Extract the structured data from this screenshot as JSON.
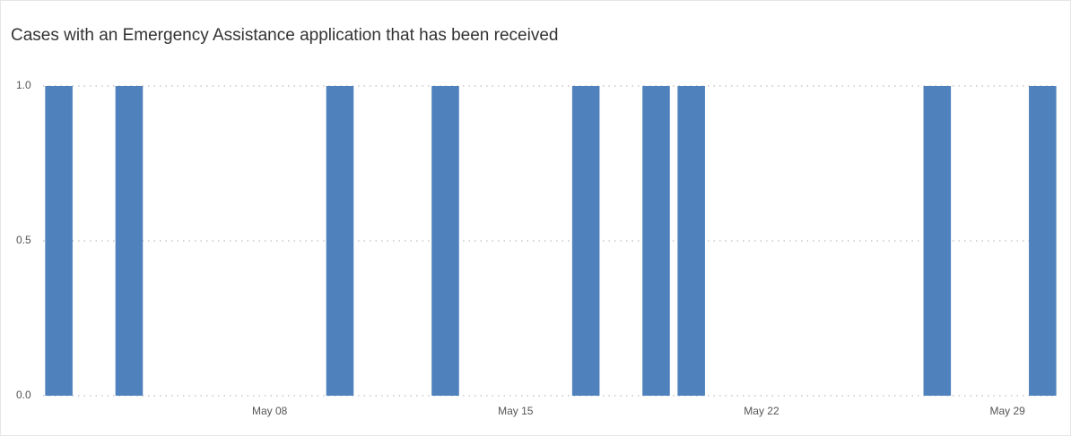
{
  "chart_data": {
    "type": "bar",
    "title": "Cases with an Emergency Assistance application that has been received",
    "x": [
      2,
      4,
      10,
      13,
      17,
      19,
      20,
      27,
      30
    ],
    "values": [
      1,
      1,
      1,
      1,
      1,
      1,
      1,
      1,
      1
    ],
    "color": "#4f81bd",
    "xlim": [
      1.55,
      30.4
    ],
    "xticks": [
      {
        "value": 8,
        "label": "May 08"
      },
      {
        "value": 15,
        "label": "May 15"
      },
      {
        "value": 22,
        "label": "May 22"
      },
      {
        "value": 29,
        "label": "May 29"
      }
    ],
    "ylim": [
      0,
      1
    ],
    "yticks": [
      {
        "value": 0,
        "label": "0.0"
      },
      {
        "value": 0.5,
        "label": "0.5"
      },
      {
        "value": 1,
        "label": "1.0"
      }
    ],
    "grid": true
  }
}
